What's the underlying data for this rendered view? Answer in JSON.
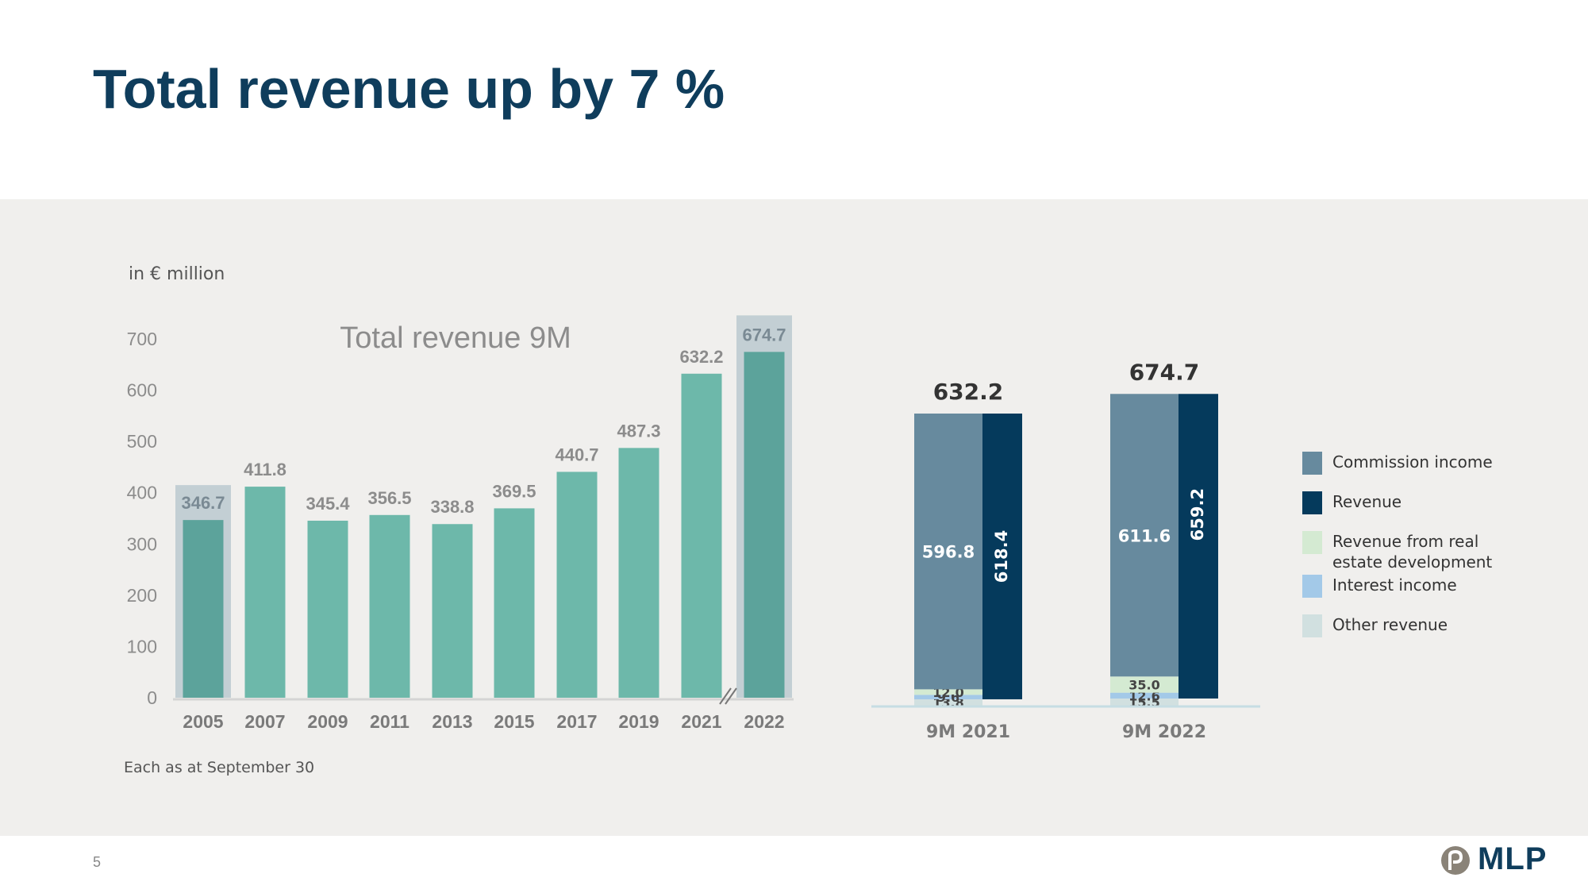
{
  "page": {
    "title": "Total revenue up by 7 %",
    "unit_label": "in € million",
    "footnote": "Each as at September 30",
    "page_number": "5",
    "logo_text": "MLP"
  },
  "colors": {
    "title": "#0f3d5c",
    "panel_bg": "#f0efed",
    "bar": "#6db8aa",
    "bar_highlight": "#5ca39b",
    "highlight_box": "#c3cfd4",
    "commission": "#678a9e",
    "revenue": "#053a5c",
    "real_estate": "#d4ead2",
    "interest": "#a3c9e8",
    "other": "#d1e0e0"
  },
  "legend": [
    {
      "label": "Commission income",
      "color_key": "commission"
    },
    {
      "label": "Revenue",
      "color_key": "revenue"
    },
    {
      "label": "Revenue from real estate development",
      "color_key": "real_estate"
    },
    {
      "label": "Interest income",
      "color_key": "interest"
    },
    {
      "label": "Other revenue",
      "color_key": "other"
    }
  ],
  "chart_data": [
    {
      "type": "bar",
      "title": "Total revenue 9M",
      "categories": [
        "2005",
        "2007",
        "2009",
        "2011",
        "2013",
        "2015",
        "2017",
        "2019",
        "2021",
        "2022"
      ],
      "values": [
        346.7,
        411.8,
        345.4,
        356.5,
        338.8,
        369.5,
        440.7,
        487.3,
        632.2,
        674.7
      ],
      "value_labels": [
        "346.7",
        "411.8",
        "345.4",
        "356.5",
        "338.8",
        "369.5",
        "440.7",
        "487.3",
        "632.2",
        "674.7"
      ],
      "highlighted": [
        "2005",
        "2022"
      ],
      "axis_break_before": "2022",
      "ylim": [
        0,
        700
      ],
      "yticks": [
        0,
        100,
        200,
        300,
        400,
        500,
        600,
        700
      ],
      "grid": false
    },
    {
      "type": "bar",
      "stacked": true,
      "categories": [
        "9M 2021",
        "9M 2022"
      ],
      "totals": [
        632.2,
        674.7
      ],
      "total_labels": [
        "632.2",
        "674.7"
      ],
      "series": [
        {
          "name": "Other revenue",
          "color_key": "other",
          "values": [
            13.8,
            15.5
          ],
          "labels": [
            "13.8",
            "15.5"
          ]
        },
        {
          "name": "Interest income",
          "color_key": "interest",
          "values": [
            9.6,
            12.6
          ],
          "labels": [
            "9.6",
            "12.6"
          ]
        },
        {
          "name": "Revenue from real estate development",
          "color_key": "real_estate",
          "values": [
            12.0,
            35.0
          ],
          "labels": [
            "12.0",
            "35.0"
          ]
        },
        {
          "name": "Commission income",
          "color_key": "commission",
          "values": [
            596.8,
            611.6
          ],
          "labels": [
            "596.8",
            "611.6"
          ]
        }
      ],
      "revenue": {
        "name": "Revenue",
        "color_key": "revenue",
        "values": [
          618.4,
          659.2
        ],
        "labels": [
          "618.4",
          "659.2"
        ]
      }
    }
  ]
}
